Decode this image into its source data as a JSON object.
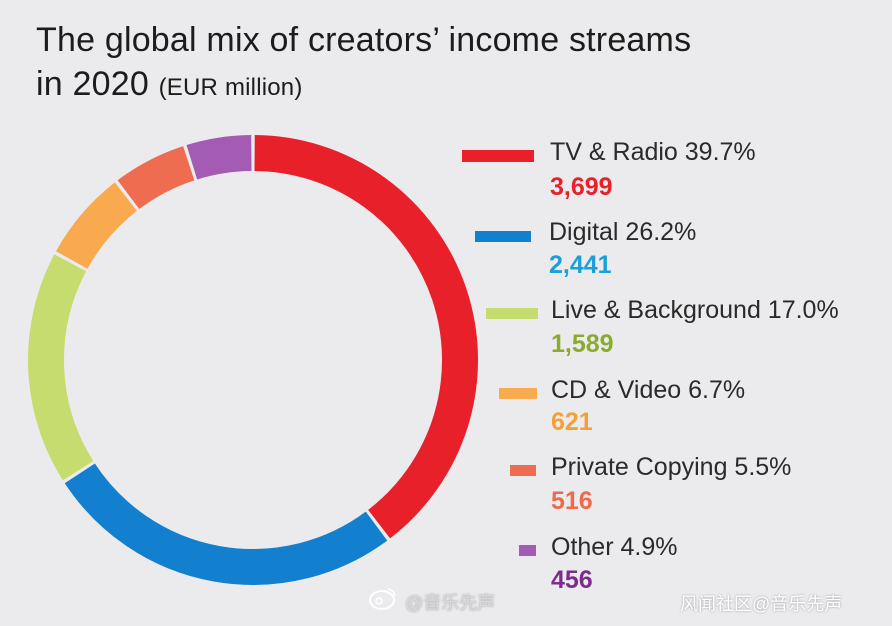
{
  "title": {
    "line1": "The global mix of creators’ income streams",
    "line2": "in 2020",
    "unit": "(EUR million)"
  },
  "chart_data": {
    "type": "pie",
    "title": "The global mix of creators’ income streams in 2020 (EUR million)",
    "series": [
      {
        "name": "TV & Radio",
        "percent": 39.7,
        "value": 3699,
        "percent_label": "TV & Radio 39.7%",
        "value_label": "3,699",
        "color": "#e8202a"
      },
      {
        "name": "Digital",
        "percent": 26.2,
        "value": 2441,
        "percent_label": "Digital 26.2%",
        "value_label": "2,441",
        "color": "#1380cf"
      },
      {
        "name": "Live & Background",
        "percent": 17.0,
        "value": 1589,
        "percent_label": "Live & Background 17.0%",
        "value_label": "1,589",
        "color": "#c6dc6e"
      },
      {
        "name": "CD & Video",
        "percent": 6.7,
        "value": 621,
        "percent_label": "CD & Video 6.7%",
        "value_label": "621",
        "color": "#f9aa4f"
      },
      {
        "name": "Private Copying",
        "percent": 5.5,
        "value": 516,
        "percent_label": "Private Copying 5.5%",
        "value_label": "516",
        "color": "#ee6d50"
      },
      {
        "name": "Other",
        "percent": 4.9,
        "value": 456,
        "percent_label": "Other 4.9%",
        "value_label": "456",
        "color": "#a35bb3"
      }
    ],
    "value_colors": [
      "#e8202a",
      "#1aa0d6",
      "#8aac2c",
      "#f4a03a",
      "#ef6a4c",
      "#7b2d8e"
    ],
    "legend": "right"
  },
  "watermark": {
    "left": "@音乐先声",
    "right": "风闻社区@音乐先声"
  }
}
